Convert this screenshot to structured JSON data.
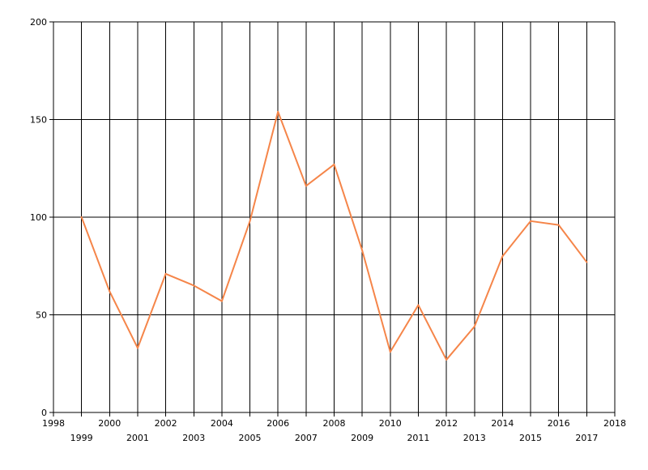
{
  "chart_data": {
    "type": "line",
    "title": "",
    "xlabel": "",
    "ylabel": "",
    "xlim": [
      1998,
      2018
    ],
    "ylim": [
      0,
      200
    ],
    "x_ticks": [
      1998,
      1999,
      2000,
      2001,
      2002,
      2003,
      2004,
      2005,
      2006,
      2007,
      2008,
      2009,
      2010,
      2011,
      2012,
      2013,
      2014,
      2015,
      2016,
      2017,
      2018
    ],
    "y_ticks": [
      0,
      50,
      100,
      150,
      200
    ],
    "grid": true,
    "series": [
      {
        "color": "#f58549",
        "x": [
          1999,
          2000,
          2001,
          2002,
          2003,
          2004,
          2005,
          2006,
          2007,
          2008,
          2009,
          2010,
          2011,
          2012,
          2013,
          2014,
          2015,
          2016,
          2017
        ],
        "values": [
          100,
          62,
          33,
          71,
          65,
          57,
          98,
          154,
          116,
          127,
          83,
          31,
          55,
          27,
          44,
          80,
          98,
          96,
          77
        ]
      }
    ]
  }
}
